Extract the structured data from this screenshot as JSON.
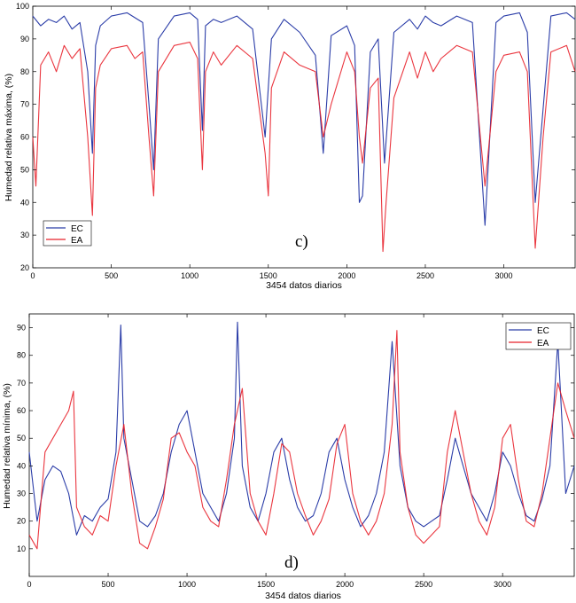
{
  "colors": {
    "EC": "#2b3da8",
    "EA": "#e8202a",
    "axis": "#000000"
  },
  "chart_data": [
    {
      "type": "line",
      "panel_label": "c)",
      "xlabel": "3454 datos diarios",
      "ylabel": "Humedad relativa máxima, (%)",
      "xlim": [
        0,
        3454
      ],
      "ylim": [
        20,
        100
      ],
      "xticks": [
        0,
        500,
        1000,
        1500,
        2000,
        2500,
        3000
      ],
      "yticks": [
        20,
        30,
        40,
        50,
        60,
        70,
        80,
        90,
        100
      ],
      "legend": {
        "position": "lower-left",
        "entries": [
          "EC",
          "EA"
        ]
      },
      "series": [
        {
          "name": "EC",
          "x": [
            0,
            50,
            100,
            150,
            200,
            250,
            300,
            350,
            380,
            400,
            430,
            500,
            600,
            700,
            740,
            770,
            800,
            900,
            1000,
            1050,
            1080,
            1100,
            1150,
            1200,
            1300,
            1400,
            1480,
            1520,
            1600,
            1700,
            1800,
            1850,
            1900,
            2000,
            2050,
            2080,
            2100,
            2150,
            2200,
            2240,
            2300,
            2400,
            2450,
            2500,
            2550,
            2600,
            2700,
            2800,
            2880,
            2950,
            3000,
            3100,
            3150,
            3200,
            3300,
            3400,
            3454
          ],
          "values": [
            97,
            94,
            96,
            95,
            97,
            93,
            95,
            80,
            55,
            88,
            94,
            97,
            98,
            95,
            70,
            50,
            90,
            97,
            98,
            96,
            62,
            94,
            96,
            95,
            97,
            93,
            60,
            90,
            96,
            92,
            85,
            55,
            91,
            94,
            88,
            40,
            42,
            86,
            90,
            52,
            92,
            96,
            93,
            97,
            95,
            94,
            97,
            95,
            33,
            95,
            97,
            98,
            92,
            40,
            97,
            98,
            96
          ]
        },
        {
          "name": "EA",
          "x": [
            0,
            20,
            50,
            100,
            150,
            200,
            250,
            300,
            350,
            380,
            400,
            430,
            500,
            600,
            650,
            700,
            740,
            770,
            800,
            900,
            1000,
            1050,
            1080,
            1100,
            1150,
            1200,
            1300,
            1400,
            1480,
            1500,
            1520,
            1600,
            1700,
            1800,
            1850,
            1900,
            2000,
            2050,
            2080,
            2100,
            2150,
            2200,
            2230,
            2250,
            2300,
            2400,
            2450,
            2500,
            2550,
            2600,
            2700,
            2800,
            2880,
            2950,
            3000,
            3100,
            3150,
            3200,
            3250,
            3300,
            3400,
            3454
          ],
          "values": [
            60,
            45,
            82,
            86,
            80,
            88,
            84,
            87,
            60,
            36,
            75,
            82,
            87,
            88,
            84,
            86,
            60,
            42,
            80,
            88,
            89,
            84,
            50,
            80,
            86,
            82,
            88,
            84,
            55,
            42,
            75,
            86,
            82,
            80,
            60,
            70,
            86,
            80,
            60,
            52,
            75,
            78,
            25,
            40,
            72,
            86,
            78,
            86,
            80,
            84,
            88,
            86,
            45,
            80,
            85,
            86,
            80,
            26,
            60,
            86,
            88,
            80
          ]
        }
      ]
    },
    {
      "type": "line",
      "panel_label": "d)",
      "xlabel": "3454 datos diarios",
      "ylabel": "Humedad relativa mínima, (%)",
      "xlim": [
        0,
        3454
      ],
      "ylim": [
        0,
        95
      ],
      "xticks": [
        0,
        500,
        1000,
        1500,
        2000,
        2500,
        3000
      ],
      "yticks": [
        10,
        20,
        30,
        40,
        50,
        60,
        70,
        80,
        90
      ],
      "legend": {
        "position": "top-right",
        "entries": [
          "EC",
          "EA"
        ]
      },
      "series": [
        {
          "name": "EC",
          "x": [
            0,
            50,
            100,
            150,
            200,
            250,
            300,
            350,
            400,
            450,
            500,
            550,
            580,
            600,
            650,
            700,
            750,
            800,
            850,
            900,
            950,
            1000,
            1050,
            1100,
            1150,
            1200,
            1250,
            1300,
            1320,
            1350,
            1400,
            1450,
            1500,
            1550,
            1600,
            1650,
            1700,
            1750,
            1800,
            1850,
            1900,
            1950,
            2000,
            2050,
            2100,
            2150,
            2200,
            2250,
            2300,
            2350,
            2400,
            2450,
            2500,
            2550,
            2600,
            2650,
            2700,
            2750,
            2800,
            2850,
            2900,
            2950,
            3000,
            3050,
            3100,
            3150,
            3200,
            3250,
            3300,
            3350,
            3400,
            3454
          ],
          "values": [
            45,
            20,
            35,
            40,
            38,
            30,
            15,
            22,
            20,
            25,
            28,
            45,
            91,
            50,
            35,
            20,
            18,
            22,
            30,
            45,
            55,
            60,
            45,
            30,
            25,
            20,
            30,
            50,
            92,
            40,
            25,
            20,
            30,
            45,
            50,
            35,
            25,
            20,
            22,
            30,
            45,
            50,
            35,
            25,
            18,
            22,
            30,
            45,
            85,
            40,
            25,
            20,
            18,
            20,
            22,
            35,
            50,
            40,
            30,
            25,
            20,
            30,
            45,
            40,
            30,
            22,
            20,
            28,
            40,
            85,
            30,
            40
          ]
        },
        {
          "name": "EA",
          "x": [
            0,
            50,
            100,
            150,
            200,
            250,
            280,
            300,
            350,
            400,
            450,
            500,
            550,
            600,
            650,
            700,
            750,
            800,
            850,
            900,
            950,
            1000,
            1050,
            1100,
            1150,
            1200,
            1250,
            1300,
            1350,
            1400,
            1450,
            1500,
            1550,
            1600,
            1650,
            1700,
            1750,
            1800,
            1850,
            1900,
            1950,
            2000,
            2050,
            2100,
            2150,
            2200,
            2250,
            2300,
            2330,
            2350,
            2400,
            2450,
            2500,
            2550,
            2600,
            2650,
            2700,
            2750,
            2800,
            2850,
            2900,
            2950,
            3000,
            3050,
            3100,
            3150,
            3200,
            3250,
            3300,
            3350,
            3400,
            3454
          ],
          "values": [
            15,
            10,
            45,
            50,
            55,
            60,
            67,
            25,
            18,
            15,
            22,
            20,
            40,
            55,
            30,
            12,
            10,
            18,
            28,
            50,
            52,
            45,
            40,
            25,
            20,
            18,
            35,
            55,
            68,
            30,
            20,
            15,
            30,
            48,
            45,
            30,
            22,
            15,
            20,
            28,
            48,
            55,
            30,
            20,
            15,
            20,
            30,
            55,
            89,
            45,
            25,
            15,
            12,
            15,
            18,
            45,
            60,
            45,
            30,
            20,
            15,
            25,
            50,
            55,
            35,
            20,
            18,
            30,
            50,
            70,
            60,
            50
          ]
        }
      ]
    }
  ]
}
